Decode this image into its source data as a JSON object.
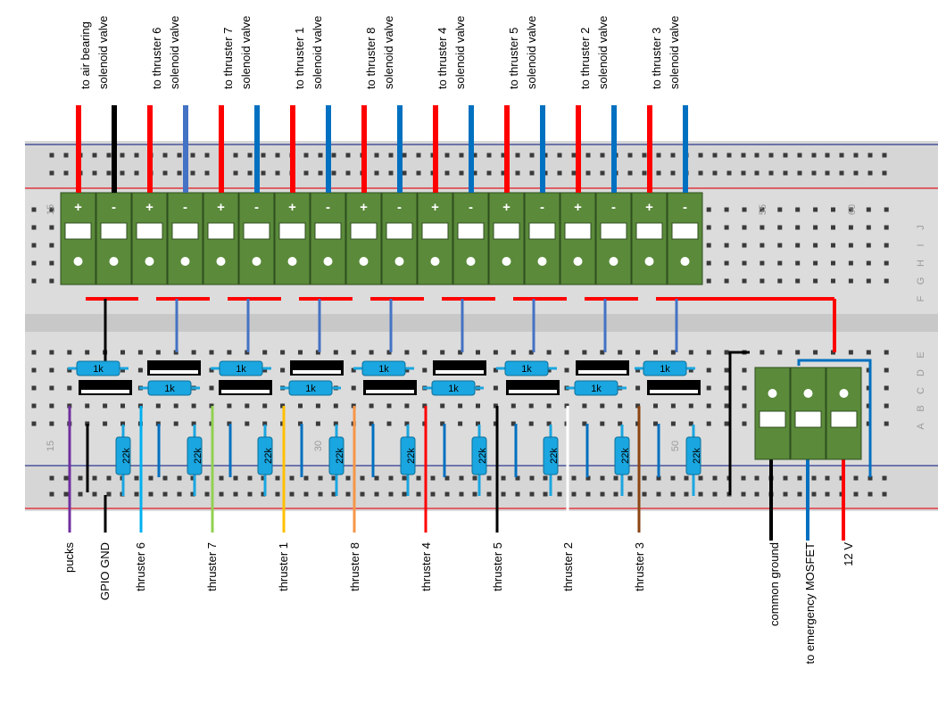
{
  "colors": {
    "board": "#dcdcdc",
    "rail_red": "#e31b23",
    "rail_blue": "#2c3b8f",
    "terminal_green": "#5a8a3a",
    "resistor": "#1aa6e0",
    "wire_red": "#ff0000",
    "wire_blue": "#0070c0",
    "wire_blue_light": "#4472c4",
    "wire_black": "#000000"
  },
  "top_labels": [
    {
      "line1": "to air bearing",
      "line2": "solenoid valve"
    },
    {
      "line1": "to thruster 6",
      "line2": "solenoid valve"
    },
    {
      "line1": "to thruster 7",
      "line2": "solenoid valve"
    },
    {
      "line1": "to thruster 1",
      "line2": "solenoid valve"
    },
    {
      "line1": "to thruster 8",
      "line2": "solenoid valve"
    },
    {
      "line1": "to thruster 4",
      "line2": "solenoid valve"
    },
    {
      "line1": "to thruster 5",
      "line2": "solenoid valve"
    },
    {
      "line1": "to thruster 2",
      "line2": "solenoid valve"
    },
    {
      "line1": "to thruster 3",
      "line2": "solenoid valve"
    }
  ],
  "terminal_signs": [
    "+",
    "-",
    "+",
    "-",
    "+",
    "-",
    "+",
    "-",
    "+",
    "-",
    "+",
    "-",
    "+",
    "-",
    "+",
    "-",
    "+",
    "-"
  ],
  "board_numbers": {
    "n15_top": "15",
    "n55": "55",
    "n60": "60",
    "n15_bottom": "15",
    "n30": "30",
    "n50": "50"
  },
  "row_letters_top": [
    "J",
    "I",
    "H",
    "G",
    "F"
  ],
  "row_letters_bottom": [
    "E",
    "D",
    "C",
    "B",
    "A"
  ],
  "resistor_1k": "1k",
  "resistor_22k": "22k",
  "bottom_labels": [
    {
      "text": "pucks",
      "color": "#7030a0"
    },
    {
      "text": "GPIO GND",
      "color": "#000000"
    },
    {
      "text": "thruster 6",
      "color": "#00b0f0"
    },
    {
      "text": "thruster 7",
      "color": "#92d050"
    },
    {
      "text": "thruster 1",
      "color": "#ffc000"
    },
    {
      "text": "thruster 8",
      "color": "#f79646"
    },
    {
      "text": "thruster 4",
      "color": "#ff0000"
    },
    {
      "text": "thruster 5",
      "color": "#000000"
    },
    {
      "text": "thruster 2",
      "color": "#ffffff"
    },
    {
      "text": "thruster 3",
      "color": "#8b4513"
    },
    {
      "text": "common ground",
      "color": "#000000"
    },
    {
      "text": "to emergency MOSFET",
      "color": "#0070c0"
    },
    {
      "text": "12 V",
      "color": "#ff0000"
    }
  ]
}
